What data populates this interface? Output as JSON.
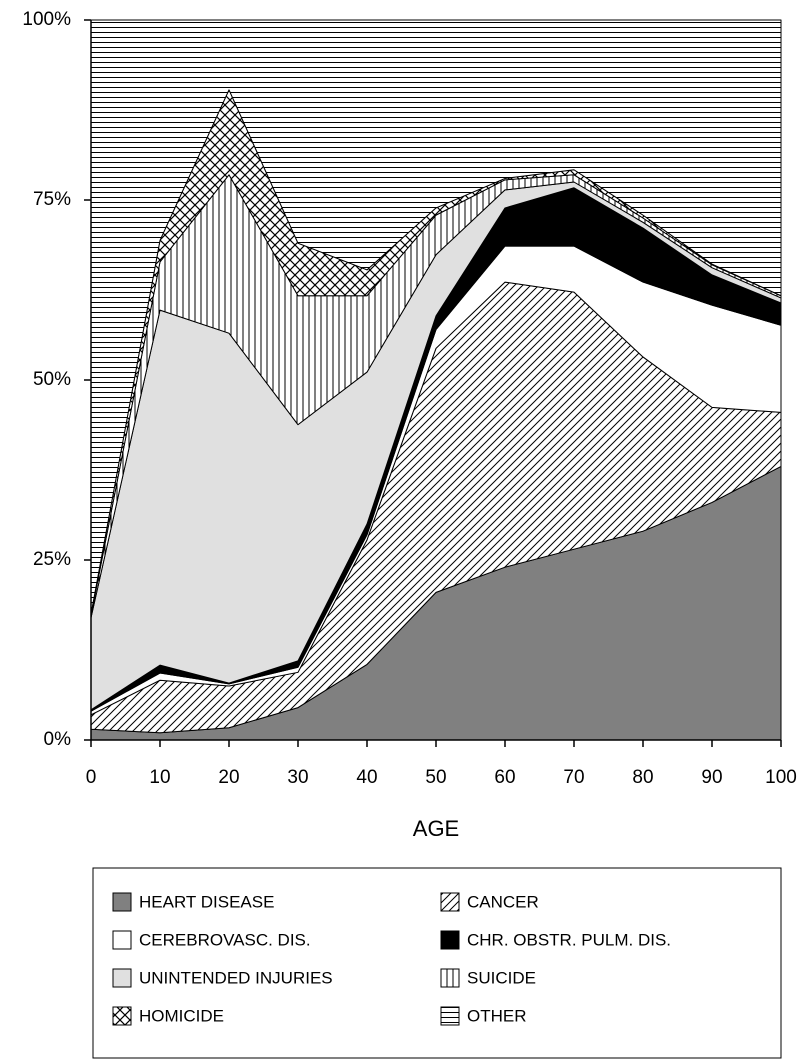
{
  "chart_data": {
    "type": "stacked_area",
    "x": [
      0,
      10,
      20,
      30,
      40,
      50,
      60,
      70,
      80,
      90,
      100
    ],
    "xlabel": "AGE",
    "xlim": [
      0,
      100
    ],
    "xticks": [
      0,
      10,
      20,
      30,
      40,
      50,
      60,
      70,
      80,
      90,
      100
    ],
    "ylim": [
      0,
      100
    ],
    "yticks": [
      {
        "value": 0,
        "label": "0%"
      },
      {
        "value": 25,
        "label": "25%"
      },
      {
        "value": 50,
        "label": "50%"
      },
      {
        "value": 75,
        "label": "75%"
      },
      {
        "value": 100,
        "label": "100%"
      }
    ],
    "series": [
      {
        "name": "HEART DISEASE",
        "pattern": "solid-gray",
        "values": [
          1.5,
          1,
          1.7,
          4.5,
          10.5,
          20.5,
          24,
          26.5,
          29,
          33,
          38
        ]
      },
      {
        "name": "CANCER",
        "pattern": "diagonal",
        "values": [
          2,
          7.3,
          5.8,
          4.9,
          17.3,
          33.9,
          39.6,
          35.7,
          24.2,
          13.2,
          7.5
        ]
      },
      {
        "name": "CEREBROVASC. DIS.",
        "pattern": "white",
        "values": [
          0.5,
          1,
          0.3,
          0.7,
          0.7,
          2.6,
          5,
          6.4,
          10.4,
          14.2,
          12.1
        ]
      },
      {
        "name": "CHR. OBSTR. PULM. DIS.",
        "pattern": "black",
        "values": [
          0.2,
          1.1,
          0.1,
          0.9,
          1.5,
          1.9,
          5.3,
          8.1,
          7.5,
          4.2,
          3.1
        ]
      },
      {
        "name": "UNINTENDED INJURIES",
        "pattern": "light-gray",
        "values": [
          12.8,
          49.3,
          48.6,
          32.8,
          21.1,
          8.5,
          2.5,
          0.8,
          0.8,
          1,
          0.7
        ]
      },
      {
        "name": "SUICIDE",
        "pattern": "vertical",
        "values": [
          0.3,
          6.7,
          22,
          17.9,
          10.6,
          5.5,
          1.4,
          1,
          0.6,
          0.4,
          0.3
        ]
      },
      {
        "name": "HOMICIDE",
        "pattern": "crosshatch",
        "values": [
          0.2,
          3,
          11.8,
          7.3,
          3.6,
          1,
          0.2,
          0.7,
          0.4,
          0.1,
          0
        ]
      },
      {
        "name": "OTHER",
        "pattern": "horizontal",
        "values": [
          82.5,
          30.6,
          9.7,
          31,
          34.7,
          26.1,
          22,
          20.8,
          27.1,
          33.9,
          38.3
        ]
      }
    ]
  }
}
